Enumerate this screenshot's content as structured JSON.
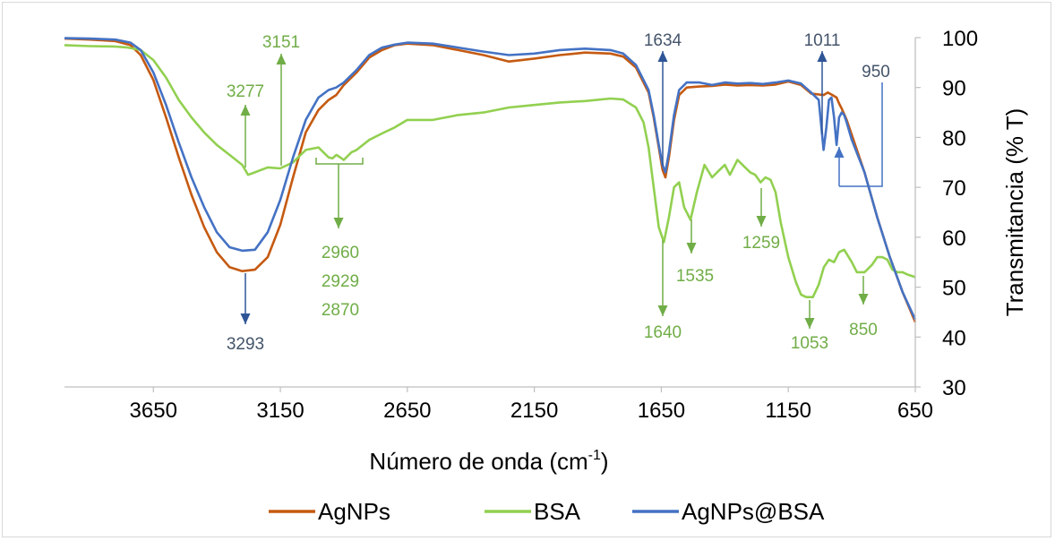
{
  "chart_data": {
    "type": "line",
    "title": "",
    "xlabel": "Número de onda (cm",
    "xlabel_sup": "-1",
    "xlabel_tail": ")",
    "ylabel": "Transmitancia (% T)",
    "xlim": [
      4000,
      650
    ],
    "ylim": [
      30,
      100
    ],
    "x_ticks": [
      3650,
      3150,
      2650,
      2150,
      1650,
      1150,
      650
    ],
    "y_ticks": [
      30,
      40,
      50,
      60,
      70,
      80,
      90,
      100
    ],
    "x_tick_labels": [
      "3650",
      "3150",
      "2650",
      "2150",
      "1650",
      "1150",
      "650"
    ],
    "y_tick_labels": [
      "30",
      "40",
      "50",
      "60",
      "70",
      "80",
      "90",
      "100"
    ],
    "y_axis_side": "right",
    "grid": false,
    "legend": "bottom",
    "series": [
      {
        "name": "AgNPs",
        "color": "#c55a11",
        "x": [
          4000,
          3900,
          3800,
          3740,
          3700,
          3650,
          3600,
          3550,
          3500,
          3450,
          3400,
          3350,
          3300,
          3250,
          3200,
          3150,
          3100,
          3050,
          3000,
          2960,
          2930,
          2900,
          2850,
          2800,
          2750,
          2700,
          2650,
          2550,
          2450,
          2350,
          2250,
          2150,
          2050,
          1950,
          1850,
          1800,
          1750,
          1700,
          1680,
          1660,
          1645,
          1634,
          1620,
          1600,
          1580,
          1550,
          1500,
          1450,
          1400,
          1350,
          1300,
          1250,
          1200,
          1150,
          1100,
          1060,
          1030,
          1011,
          995,
          980,
          960,
          950,
          940,
          920,
          900,
          850,
          800,
          750,
          700,
          650
        ],
        "y": [
          99.8,
          99.6,
          99.3,
          98.5,
          96.5,
          91.5,
          84,
          76,
          68.5,
          62,
          57,
          54,
          53.2,
          53.5,
          56,
          62.5,
          72,
          81,
          85.5,
          87.5,
          88.5,
          90.5,
          93,
          96,
          97.5,
          98.5,
          98.8,
          98.5,
          97.5,
          96.5,
          95.2,
          95.8,
          96.5,
          97,
          96.8,
          96.2,
          94,
          89,
          84,
          78,
          73.5,
          72,
          76,
          83.5,
          88.5,
          90,
          90.2,
          90.3,
          90.6,
          90.4,
          90.5,
          90.4,
          90.6,
          91.2,
          90.5,
          88.8,
          88.6,
          88.5,
          89,
          88.6,
          88,
          86.8,
          85.8,
          83.5,
          80.5,
          73,
          64,
          56,
          49,
          43
        ]
      },
      {
        "name": "BSA",
        "color": "#92d050",
        "x": [
          4000,
          3900,
          3800,
          3750,
          3700,
          3650,
          3600,
          3550,
          3500,
          3450,
          3400,
          3350,
          3300,
          3277,
          3250,
          3200,
          3151,
          3100,
          3050,
          3000,
          2960,
          2945,
          2929,
          2900,
          2870,
          2850,
          2800,
          2750,
          2700,
          2650,
          2550,
          2450,
          2350,
          2250,
          2150,
          2050,
          1950,
          1850,
          1800,
          1750,
          1720,
          1700,
          1680,
          1660,
          1640,
          1620,
          1600,
          1580,
          1560,
          1535,
          1510,
          1480,
          1450,
          1420,
          1400,
          1380,
          1350,
          1320,
          1300,
          1280,
          1259,
          1240,
          1220,
          1200,
          1180,
          1150,
          1120,
          1100,
          1080,
          1053,
          1030,
          1010,
          990,
          970,
          950,
          930,
          900,
          880,
          850,
          820,
          800,
          780,
          760,
          740,
          720,
          700,
          680,
          650
        ],
        "y": [
          98.5,
          98.3,
          98.2,
          98,
          97.5,
          95.5,
          92,
          87.5,
          84,
          81,
          78.5,
          76.5,
          74.5,
          72.5,
          73,
          74,
          73.8,
          75,
          77.5,
          78,
          76,
          75.8,
          76.5,
          75.5,
          77,
          77.5,
          79.5,
          80.8,
          82,
          83.5,
          83.5,
          84.5,
          85,
          86,
          86.5,
          87,
          87.3,
          87.8,
          87.6,
          86,
          83,
          78,
          70,
          62,
          59,
          64,
          70,
          71,
          66,
          63.5,
          69,
          74.5,
          72,
          73.5,
          74.5,
          72.5,
          75.5,
          74,
          73,
          72.5,
          71,
          72,
          71.5,
          69,
          63,
          56,
          51,
          48.5,
          48,
          48,
          50.5,
          54,
          55.5,
          55,
          57,
          57.5,
          55,
          53,
          53,
          54.5,
          56,
          56,
          55.5,
          53.5,
          53,
          53,
          52.5,
          52
        ]
      },
      {
        "name": "AgNPs@BSA",
        "color": "#4472c4",
        "x": [
          4000,
          3900,
          3800,
          3740,
          3700,
          3650,
          3600,
          3550,
          3500,
          3450,
          3400,
          3350,
          3300,
          3250,
          3200,
          3150,
          3100,
          3050,
          3000,
          2960,
          2930,
          2900,
          2850,
          2800,
          2750,
          2700,
          2650,
          2550,
          2450,
          2350,
          2250,
          2150,
          2050,
          1950,
          1850,
          1800,
          1750,
          1700,
          1680,
          1660,
          1645,
          1634,
          1620,
          1600,
          1580,
          1550,
          1500,
          1450,
          1400,
          1350,
          1300,
          1250,
          1200,
          1150,
          1100,
          1060,
          1030,
          1011,
          1000,
          990,
          980,
          970,
          960,
          950,
          940,
          930,
          920,
          900,
          850,
          800,
          750,
          700,
          650
        ],
        "y": [
          99.9,
          99.8,
          99.6,
          99,
          97.5,
          93,
          86.5,
          79,
          72,
          66,
          61,
          58,
          57.3,
          57.5,
          61,
          67.5,
          76,
          83.5,
          88,
          89.5,
          90,
          91,
          93.5,
          96.5,
          98,
          98.6,
          99,
          98.8,
          98,
          97.2,
          96.5,
          96.8,
          97.5,
          97.8,
          97.5,
          96.8,
          94.5,
          89.5,
          84.5,
          78.5,
          74.5,
          73,
          77,
          84.5,
          89.5,
          91,
          91,
          90.5,
          91,
          90.8,
          90.9,
          90.7,
          91,
          91.4,
          90.8,
          89,
          87.5,
          77.5,
          82,
          87.5,
          88,
          84,
          78.5,
          84,
          85,
          84.5,
          83,
          79.5,
          73,
          64,
          56,
          49,
          43.5
        ]
      }
    ],
    "annotations": [
      {
        "label": "3151",
        "color": "#70ad47"
      },
      {
        "label": "3277",
        "color": "#70ad47"
      },
      {
        "label": "3293",
        "color": "#44546a"
      },
      {
        "label": "2960",
        "color": "#70ad47"
      },
      {
        "label": "2929",
        "color": "#70ad47"
      },
      {
        "label": "2870",
        "color": "#70ad47"
      },
      {
        "label": "1634",
        "color": "#44546a"
      },
      {
        "label": "1011",
        "color": "#44546a"
      },
      {
        "label": "950",
        "color": "#44546a"
      },
      {
        "label": "1640",
        "color": "#70ad47"
      },
      {
        "label": "1535",
        "color": "#70ad47"
      },
      {
        "label": "1259",
        "color": "#70ad47"
      },
      {
        "label": "1053",
        "color": "#70ad47"
      },
      {
        "label": "850",
        "color": "#70ad47"
      }
    ]
  }
}
